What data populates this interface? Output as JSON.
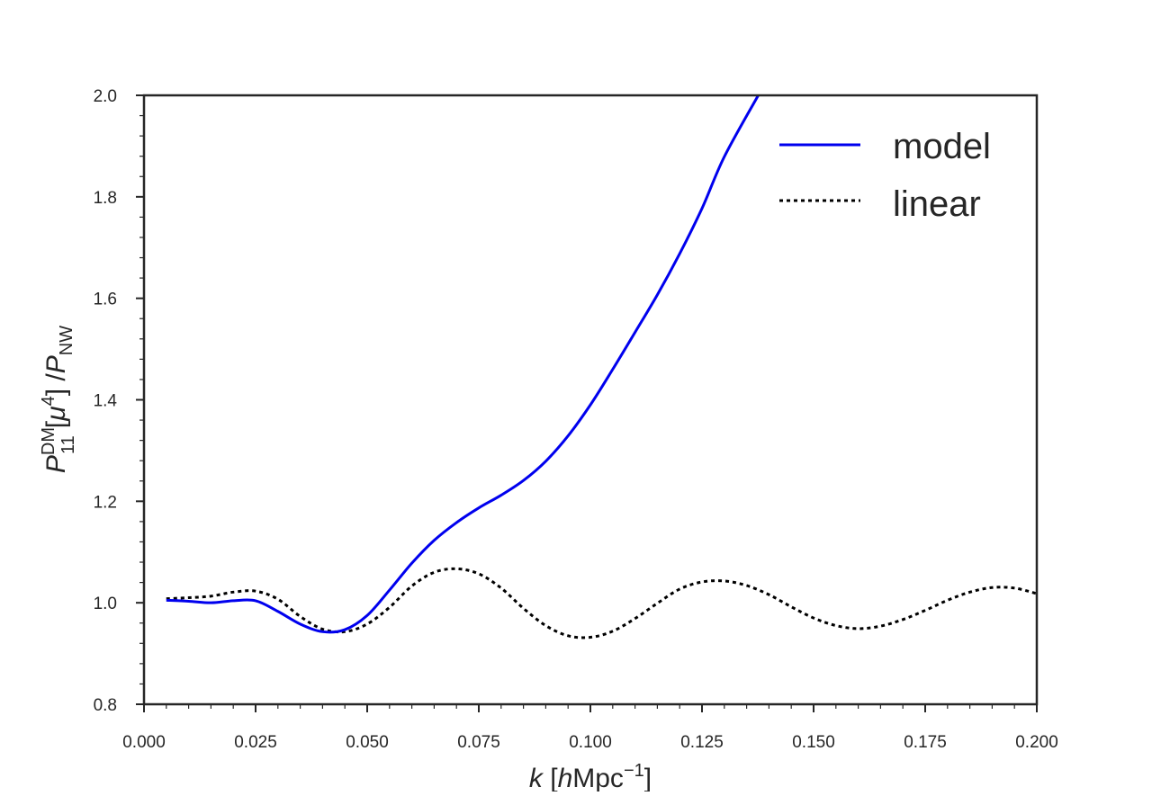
{
  "chart_data": {
    "type": "line",
    "xlabel": {
      "var": "k",
      "open": " [",
      "unit_it": "h",
      "unit": "Mpc",
      "exp": "−1",
      "close": "]"
    },
    "ylabel": {
      "var": "P",
      "var_sup": "DM",
      "var_sub": "11",
      "mu_open": "[",
      "mu": "μ",
      "mu_exp": "4",
      "mu_close": "] /",
      "denom": "P",
      "denom_sub": "NW"
    },
    "xlim": [
      0.0,
      0.2
    ],
    "ylim": [
      0.8,
      2.0
    ],
    "x_ticks": [
      {
        "value": 0.0,
        "label": "0.000"
      },
      {
        "value": 0.025,
        "label": "0.025"
      },
      {
        "value": 0.05,
        "label": "0.050"
      },
      {
        "value": 0.075,
        "label": "0.075"
      },
      {
        "value": 0.1,
        "label": "0.100"
      },
      {
        "value": 0.125,
        "label": "0.125"
      },
      {
        "value": 0.15,
        "label": "0.150"
      },
      {
        "value": 0.175,
        "label": "0.175"
      },
      {
        "value": 0.2,
        "label": "0.200"
      }
    ],
    "y_ticks": [
      {
        "value": 0.8,
        "label": "0.8"
      },
      {
        "value": 1.0,
        "label": "1.0"
      },
      {
        "value": 1.2,
        "label": "1.2"
      },
      {
        "value": 1.4,
        "label": "1.4"
      },
      {
        "value": 1.6,
        "label": "1.6"
      },
      {
        "value": 1.8,
        "label": "1.8"
      },
      {
        "value": 2.0,
        "label": "2.0"
      }
    ],
    "grid": false,
    "legend_position": "top-right",
    "series": [
      {
        "name": "model",
        "color": "#0000ee",
        "style": "solid",
        "x": [
          0.005,
          0.01,
          0.015,
          0.02,
          0.025,
          0.03,
          0.035,
          0.04,
          0.045,
          0.05,
          0.055,
          0.06,
          0.065,
          0.07,
          0.075,
          0.08,
          0.085,
          0.09,
          0.095,
          0.1,
          0.105,
          0.11,
          0.115,
          0.12,
          0.125,
          0.13,
          0.1376
        ],
        "y": [
          1.005,
          1.003,
          1.0,
          1.004,
          1.004,
          0.983,
          0.958,
          0.943,
          0.947,
          0.975,
          1.025,
          1.078,
          1.123,
          1.158,
          1.187,
          1.212,
          1.241,
          1.279,
          1.329,
          1.39,
          1.46,
          1.533,
          1.607,
          1.688,
          1.777,
          1.879,
          2.0
        ]
      },
      {
        "name": "linear",
        "color": "#000000",
        "style": "dotted",
        "x": [
          0.005,
          0.01,
          0.015,
          0.02,
          0.025,
          0.03,
          0.035,
          0.04,
          0.045,
          0.05,
          0.055,
          0.06,
          0.065,
          0.07,
          0.075,
          0.08,
          0.085,
          0.09,
          0.095,
          0.1,
          0.105,
          0.11,
          0.115,
          0.12,
          0.125,
          0.13,
          0.135,
          0.14,
          0.145,
          0.15,
          0.155,
          0.16,
          0.165,
          0.17,
          0.175,
          0.18,
          0.185,
          0.19,
          0.195,
          0.2
        ],
        "y": [
          1.008,
          1.01,
          1.013,
          1.021,
          1.023,
          1.007,
          0.973,
          0.948,
          0.943,
          0.958,
          0.991,
          1.033,
          1.06,
          1.067,
          1.057,
          1.029,
          0.989,
          0.955,
          0.935,
          0.932,
          0.944,
          0.969,
          0.999,
          1.027,
          1.041,
          1.043,
          1.034,
          1.016,
          0.992,
          0.97,
          0.955,
          0.949,
          0.954,
          0.967,
          0.985,
          1.005,
          1.021,
          1.03,
          1.029,
          1.018
        ]
      }
    ]
  }
}
